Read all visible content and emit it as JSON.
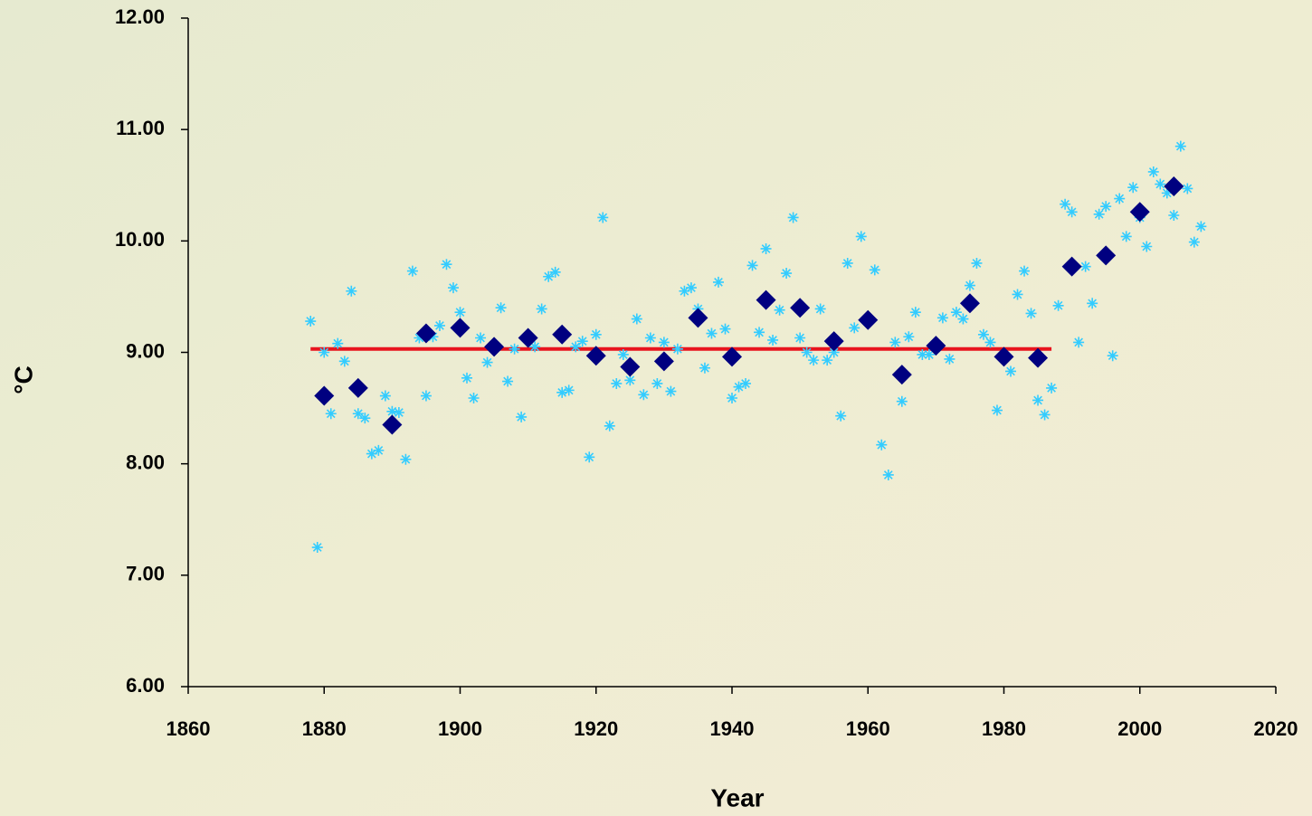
{
  "chart_data": {
    "type": "scatter",
    "x_label": "Year",
    "y_label": "°C",
    "xlim": [
      1860,
      2020
    ],
    "xticks": [
      1860,
      1880,
      1900,
      1920,
      1940,
      1960,
      1980,
      2000,
      2020
    ],
    "ylim": [
      6,
      12
    ],
    "yticks": [
      {
        "value": 6,
        "label": "6.00"
      },
      {
        "value": 7,
        "label": "7.00"
      },
      {
        "value": 8,
        "label": "8.00"
      },
      {
        "value": 9,
        "label": "9.00"
      },
      {
        "value": 10,
        "label": "10.00"
      },
      {
        "value": 11,
        "label": "11.00"
      },
      {
        "value": 12,
        "label": "12.00"
      }
    ],
    "series": [
      {
        "marker": "asterisk",
        "color": "#33ccff",
        "x": [
          1878,
          1879,
          1880,
          1881,
          1882,
          1883,
          1884,
          1885,
          1886,
          1887,
          1888,
          1889,
          1890,
          1891,
          1892,
          1893,
          1894,
          1895,
          1896,
          1897,
          1898,
          1899,
          1900,
          1901,
          1902,
          1903,
          1904,
          1905,
          1906,
          1907,
          1908,
          1909,
          1910,
          1911,
          1912,
          1913,
          1914,
          1915,
          1916,
          1917,
          1918,
          1919,
          1920,
          1921,
          1922,
          1923,
          1924,
          1925,
          1926,
          1927,
          1928,
          1929,
          1930,
          1931,
          1932,
          1933,
          1934,
          1935,
          1936,
          1937,
          1938,
          1939,
          1940,
          1941,
          1942,
          1943,
          1944,
          1945,
          1946,
          1947,
          1948,
          1949,
          1950,
          1951,
          1952,
          1953,
          1954,
          1955,
          1956,
          1957,
          1958,
          1959,
          1960,
          1961,
          1962,
          1963,
          1964,
          1965,
          1966,
          1967,
          1968,
          1969,
          1970,
          1971,
          1972,
          1973,
          1974,
          1975,
          1976,
          1977,
          1978,
          1979,
          1980,
          1981,
          1982,
          1983,
          1984,
          1985,
          1986,
          1987,
          1988,
          1989,
          1990,
          1991,
          1992,
          1993,
          1994,
          1995,
          1996,
          1997,
          1998,
          1999,
          2000,
          2001,
          2002,
          2003,
          2004,
          2005,
          2006,
          2007,
          2008,
          2009
        ],
        "values": [
          9.28,
          7.25,
          9.0,
          8.45,
          9.08,
          8.92,
          9.55,
          8.45,
          8.41,
          8.09,
          8.12,
          8.61,
          8.47,
          8.46,
          8.04,
          9.73,
          9.13,
          8.61,
          9.14,
          9.24,
          9.79,
          9.58,
          9.36,
          8.77,
          8.59,
          9.13,
          8.91,
          9.05,
          9.4,
          8.74,
          9.03,
          8.42,
          9.12,
          9.05,
          9.39,
          9.68,
          9.72,
          8.64,
          8.66,
          9.05,
          9.1,
          8.06,
          9.16,
          10.21,
          8.34,
          8.72,
          8.98,
          8.75,
          9.3,
          8.62,
          9.13,
          8.72,
          9.09,
          8.65,
          9.03,
          9.55,
          9.58,
          9.39,
          8.86,
          9.17,
          9.63,
          9.21,
          8.59,
          8.69,
          8.72,
          9.78,
          9.18,
          9.93,
          9.11,
          9.38,
          9.71,
          10.21,
          9.13,
          9.0,
          8.93,
          9.39,
          8.93,
          9.0,
          8.43,
          9.8,
          9.22,
          10.04,
          9.3,
          9.74,
          8.17,
          7.9,
          9.09,
          8.56,
          9.14,
          9.36,
          8.98,
          8.98,
          9.04,
          9.31,
          8.94,
          9.36,
          9.3,
          9.6,
          9.8,
          9.16,
          9.09,
          8.48,
          8.96,
          8.83,
          9.52,
          9.73,
          9.35,
          8.57,
          8.44,
          8.68,
          9.42,
          10.33,
          10.26,
          9.09,
          9.77,
          9.44,
          10.24,
          10.31,
          8.97,
          10.38,
          10.04,
          10.48,
          10.21,
          9.95,
          10.62,
          10.51,
          10.43,
          10.23,
          10.85,
          10.47,
          9.99,
          10.13
        ]
      },
      {
        "marker": "diamond",
        "color": "#000080",
        "x": [
          1880,
          1885,
          1890,
          1895,
          1900,
          1905,
          1910,
          1915,
          1920,
          1925,
          1930,
          1935,
          1940,
          1945,
          1950,
          1955,
          1960,
          1965,
          1970,
          1975,
          1980,
          1985,
          1990,
          1995,
          2000,
          2005
        ],
        "values": [
          8.61,
          8.68,
          8.35,
          9.17,
          9.22,
          9.05,
          9.13,
          9.16,
          8.97,
          8.87,
          8.92,
          9.31,
          8.96,
          9.47,
          9.4,
          9.1,
          9.29,
          8.8,
          9.06,
          9.44,
          8.96,
          8.95,
          9.77,
          9.87,
          10.26,
          10.49
        ]
      },
      {
        "marker": "line",
        "color": "#e8141e",
        "x": [
          1878,
          1987
        ],
        "values": [
          9.03,
          9.03
        ]
      }
    ]
  }
}
